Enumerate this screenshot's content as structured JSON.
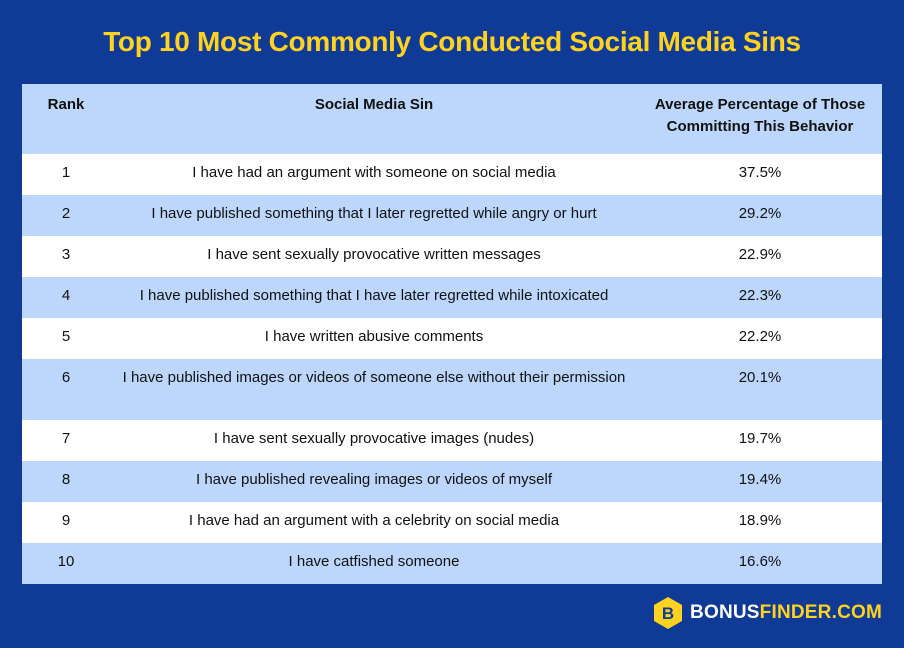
{
  "title": "Top 10 Most Commonly Conducted Social Media Sins",
  "chart_data": {
    "type": "table",
    "columns": [
      "Rank",
      "Social Media Sin",
      "Average Percentage of Those Committing This Behavior"
    ],
    "rows": [
      {
        "rank": "1",
        "sin": "I have had an argument with someone on social media",
        "pct": "37.5%"
      },
      {
        "rank": "2",
        "sin": "I have published something that I later regretted while angry or hurt",
        "pct": "29.2%"
      },
      {
        "rank": "3",
        "sin": "I have sent sexually provocative written messages",
        "pct": "22.9%"
      },
      {
        "rank": "4",
        "sin": "I have published something that I have later regretted while intoxicated",
        "pct": "22.3%"
      },
      {
        "rank": "5",
        "sin": "I have written abusive comments",
        "pct": "22.2%"
      },
      {
        "rank": "6",
        "sin": "I have published images or videos of someone else without their permission",
        "pct": "20.1%"
      },
      {
        "rank": "7",
        "sin": "I have sent sexually provocative images (nudes)",
        "pct": "19.7%"
      },
      {
        "rank": "8",
        "sin": "I have published revealing images or videos of myself",
        "pct": "19.4%"
      },
      {
        "rank": "9",
        "sin": "I have had an argument with a celebrity on social media",
        "pct": "18.9%"
      },
      {
        "rank": "10",
        "sin": "I have catfished someone",
        "pct": "16.6%"
      }
    ]
  },
  "brand": {
    "part1": "BONUS",
    "part2": "FINDER.COM",
    "icon": "bonusfinder-logo-icon"
  },
  "colors": {
    "background": "#0f3a96",
    "title": "#ffd21f",
    "header_row": "#bcd7fb",
    "stripe_row": "#bcd7fb",
    "plain_row": "#ffffff"
  }
}
